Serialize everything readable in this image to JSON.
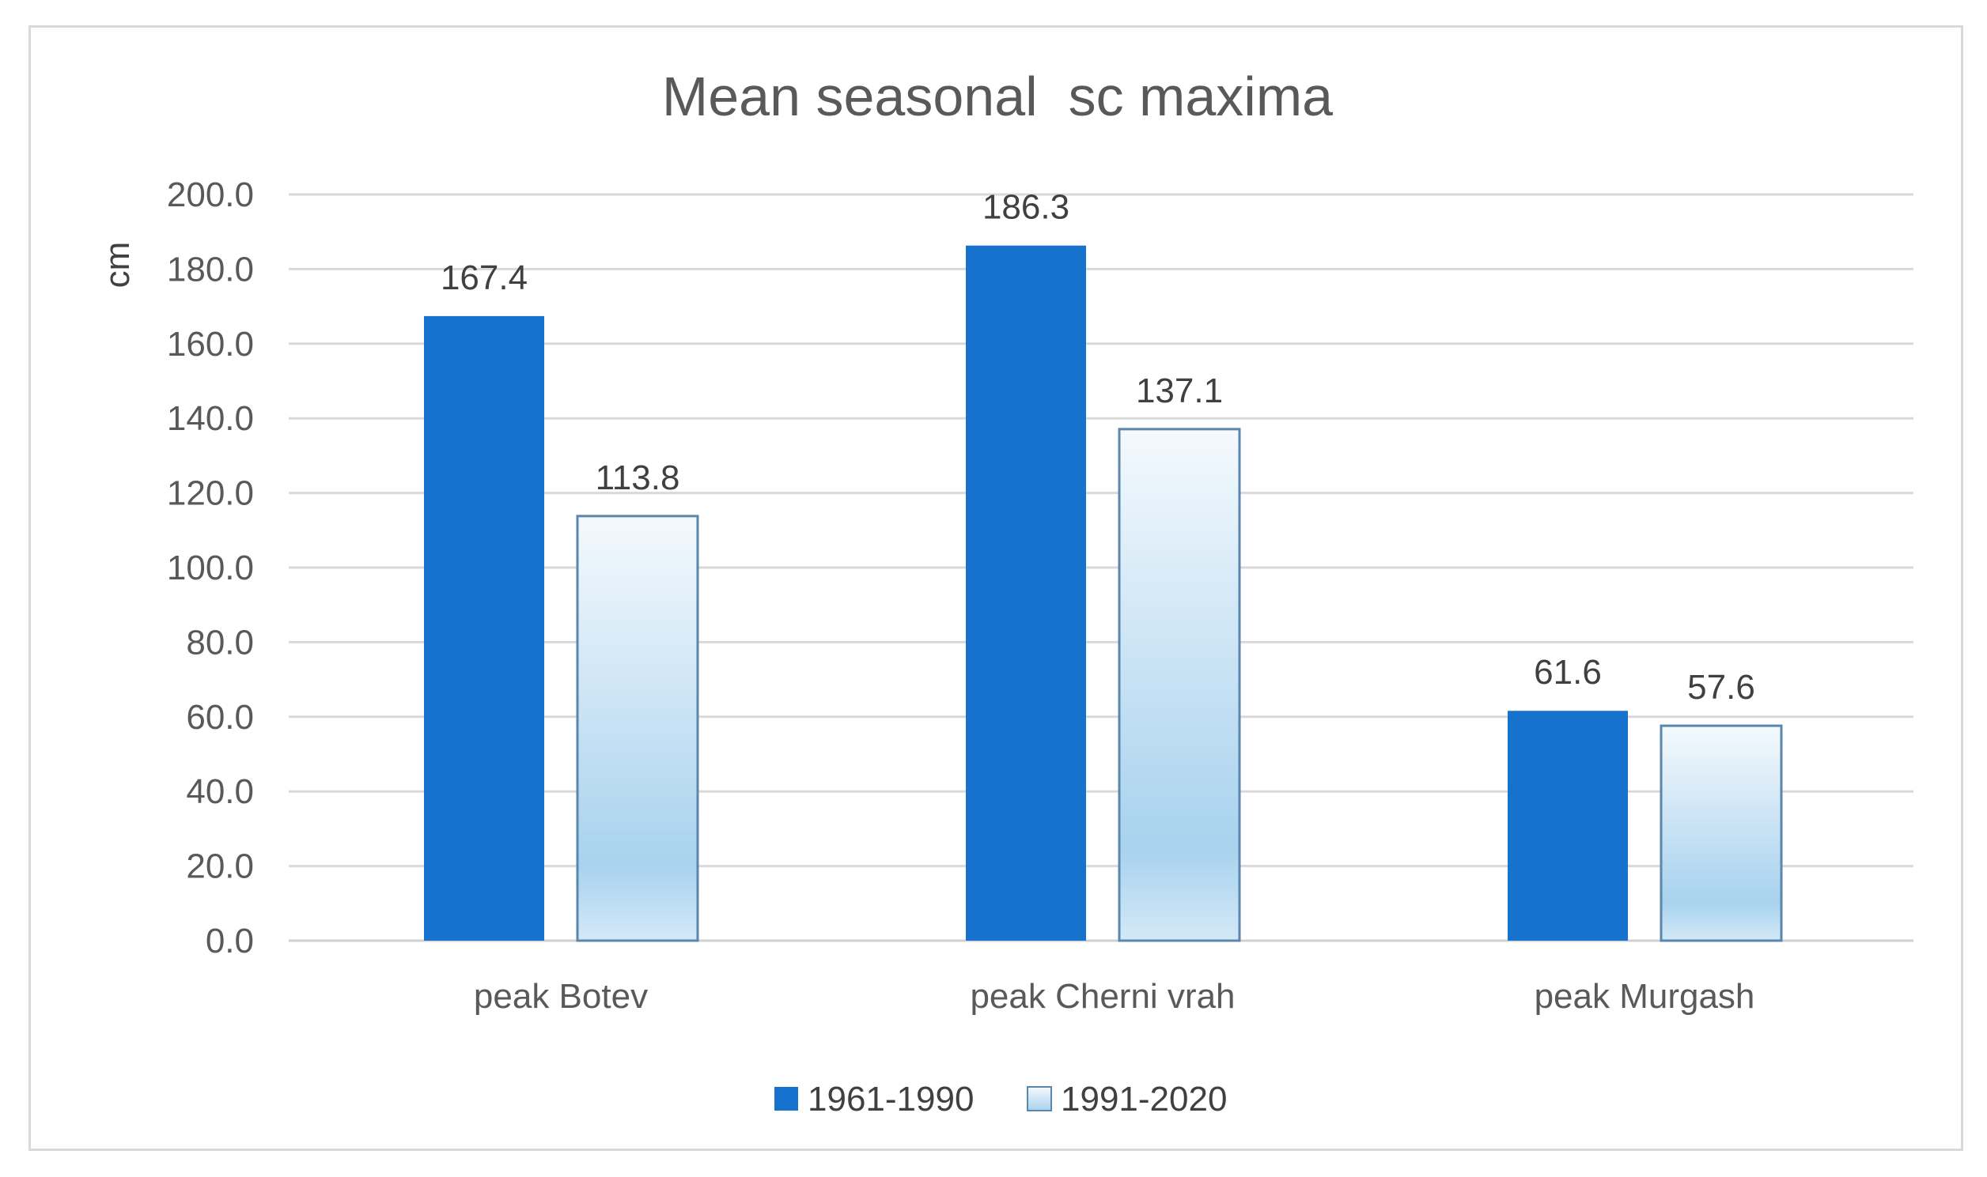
{
  "chart_data": {
    "type": "bar",
    "title": "Mean seasonal  sc maxima",
    "xlabel": "",
    "ylabel": "cm",
    "ylim": [
      0,
      200
    ],
    "ytick_step": 20,
    "ytick_labels": [
      "0.0",
      "20.0",
      "40.0",
      "60.0",
      "80.0",
      "100.0",
      "120.0",
      "140.0",
      "160.0",
      "180.0",
      "200.0"
    ],
    "grid": true,
    "legend_position": "bottom",
    "categories": [
      "peak Botev",
      "peak Cherni vrah",
      "peak Murgash"
    ],
    "series": [
      {
        "name": "1961-1990",
        "values": [
          167.4,
          186.3,
          61.6
        ],
        "labels": [
          "167.4",
          "186.3",
          "61.6"
        ],
        "color": "#1672cc"
      },
      {
        "name": "1991-2020",
        "values": [
          113.8,
          137.1,
          57.6
        ],
        "labels": [
          "113.8",
          "137.1",
          "57.6"
        ],
        "color": "#a9d2ee",
        "border": "#5b86ad"
      }
    ]
  }
}
